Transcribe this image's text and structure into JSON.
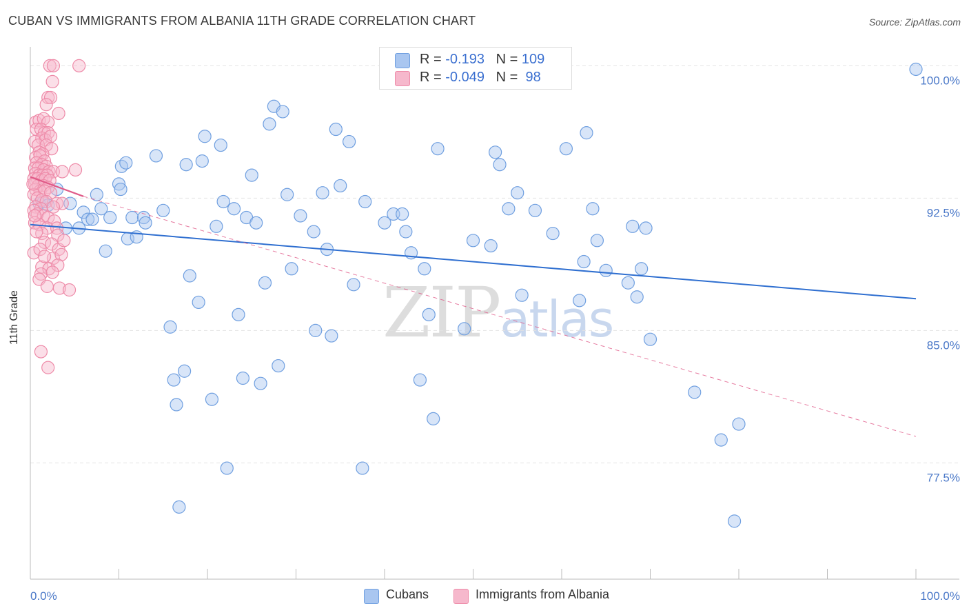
{
  "header": {
    "title": "CUBAN VS IMMIGRANTS FROM ALBANIA 11TH GRADE CORRELATION CHART",
    "source": "Source: ZipAtlas.com"
  },
  "watermark": {
    "zip": "ZIP",
    "atlas": "atlas"
  },
  "legend": {
    "rows": [
      {
        "r_label": "R = ",
        "r_value": "-0.193",
        "n_label": "N = ",
        "n_value": "109",
        "color": "#a9c6f0"
      },
      {
        "r_label": "R = ",
        "r_value": "-0.049",
        "n_label": "N = ",
        "n_value": " 98",
        "color": "#f6b8cc"
      }
    ]
  },
  "bottom_legend": [
    {
      "label": "Cubans",
      "color": "#a9c6f0"
    },
    {
      "label": "Immigrants from Albania",
      "color": "#f6b8cc"
    }
  ],
  "colors": {
    "cubans_fill": "#a9c6f0",
    "cubans_stroke": "#6f9fe0",
    "cubans_line": "#2f6fd0",
    "albania_fill": "#f6b8cc",
    "albania_stroke": "#ee8aa8",
    "albania_line": "#e05a88",
    "axis_text": "#4a78c8",
    "grid": "#e2e2e2"
  },
  "chart_data": {
    "type": "scatter",
    "title": "CUBAN VS IMMIGRANTS FROM ALBANIA 11TH GRADE CORRELATION CHART",
    "xlabel": "",
    "ylabel": "11th Grade",
    "xlim": [
      0,
      100
    ],
    "ylim": [
      71.5,
      100.6
    ],
    "x_tick_labels": [
      "0.0%",
      "100.0%"
    ],
    "y_ticks": [
      77.5,
      85.0,
      92.5,
      100.0
    ],
    "y_tick_labels": [
      "77.5%",
      "85.0%",
      "92.5%",
      "100.0%"
    ],
    "grid": true,
    "legend_position": "top-center",
    "series": [
      {
        "name": "Cubans",
        "R": -0.193,
        "N": 109,
        "trend": {
          "x": [
            0,
            100
          ],
          "y": [
            91.0,
            86.8
          ]
        },
        "points": [
          [
            1,
            92.2
          ],
          [
            1.5,
            92.3
          ],
          [
            2,
            92.1
          ],
          [
            3,
            93.0
          ],
          [
            4,
            90.8
          ],
          [
            4.5,
            92.2
          ],
          [
            5.5,
            90.8
          ],
          [
            6,
            91.7
          ],
          [
            6.5,
            91.3
          ],
          [
            7,
            91.3
          ],
          [
            7.5,
            92.7
          ],
          [
            8,
            91.9
          ],
          [
            8.5,
            89.5
          ],
          [
            9,
            91.4
          ],
          [
            10,
            93.3
          ],
          [
            10.2,
            93.0
          ],
          [
            10.3,
            94.3
          ],
          [
            10.8,
            94.5
          ],
          [
            11,
            90.2
          ],
          [
            11.5,
            91.4
          ],
          [
            12,
            90.3
          ],
          [
            12.8,
            91.4
          ],
          [
            13,
            91.1
          ],
          [
            14.2,
            94.9
          ],
          [
            15,
            91.8
          ],
          [
            15.8,
            85.2
          ],
          [
            16.2,
            82.2
          ],
          [
            16.5,
            80.8
          ],
          [
            16.8,
            75.0
          ],
          [
            17.4,
            82.7
          ],
          [
            17.6,
            94.4
          ],
          [
            18,
            88.1
          ],
          [
            19,
            86.6
          ],
          [
            19.4,
            94.6
          ],
          [
            19.7,
            96.0
          ],
          [
            20.5,
            81.1
          ],
          [
            21,
            90.9
          ],
          [
            21.5,
            95.5
          ],
          [
            21.8,
            92.3
          ],
          [
            22.2,
            77.2
          ],
          [
            23,
            91.9
          ],
          [
            23.5,
            85.9
          ],
          [
            24,
            82.3
          ],
          [
            24.4,
            91.4
          ],
          [
            25,
            93.8
          ],
          [
            25.5,
            91.1
          ],
          [
            26,
            82.0
          ],
          [
            26.5,
            87.7
          ],
          [
            27,
            96.7
          ],
          [
            27.5,
            97.7
          ],
          [
            28,
            83.0
          ],
          [
            28.5,
            97.4
          ],
          [
            29,
            92.7
          ],
          [
            29.5,
            88.5
          ],
          [
            30.5,
            91.5
          ],
          [
            32,
            90.6
          ],
          [
            32.2,
            85.0
          ],
          [
            33,
            92.8
          ],
          [
            33.5,
            89.6
          ],
          [
            34,
            84.7
          ],
          [
            34.5,
            96.4
          ],
          [
            35,
            93.2
          ],
          [
            36,
            95.7
          ],
          [
            36.5,
            87.6
          ],
          [
            37.5,
            77.2
          ],
          [
            37.8,
            92.3
          ],
          [
            40,
            91.1
          ],
          [
            41,
            91.6
          ],
          [
            42,
            91.6
          ],
          [
            42.4,
            90.6
          ],
          [
            43,
            89.4
          ],
          [
            44,
            82.2
          ],
          [
            44.5,
            88.5
          ],
          [
            45,
            85.9
          ],
          [
            45.5,
            80.0
          ],
          [
            46,
            95.3
          ],
          [
            49,
            85.1
          ],
          [
            50,
            90.1
          ],
          [
            52,
            89.8
          ],
          [
            52.5,
            95.1
          ],
          [
            53,
            94.4
          ],
          [
            54,
            91.9
          ],
          [
            55,
            92.8
          ],
          [
            55.5,
            87.0
          ],
          [
            57,
            91.8
          ],
          [
            59,
            90.5
          ],
          [
            60.5,
            95.3
          ],
          [
            62,
            86.7
          ],
          [
            62.5,
            88.9
          ],
          [
            62.8,
            96.2
          ],
          [
            63.5,
            91.9
          ],
          [
            64,
            90.1
          ],
          [
            65,
            88.4
          ],
          [
            67.5,
            87.7
          ],
          [
            68,
            90.9
          ],
          [
            68.5,
            86.9
          ],
          [
            69,
            88.5
          ],
          [
            69.5,
            90.8
          ],
          [
            70,
            84.5
          ],
          [
            75,
            81.5
          ],
          [
            78,
            78.8
          ],
          [
            79.5,
            74.2
          ],
          [
            80,
            79.7
          ],
          [
            100,
            99.8
          ]
        ]
      },
      {
        "name": "Immigrants from Albania",
        "R": -0.049,
        "N": 98,
        "trend": {
          "x": [
            0,
            6
          ],
          "y": [
            93.7,
            92.6
          ]
        },
        "trend_extended": {
          "x": [
            6,
            100
          ],
          "y": [
            92.6,
            79.0
          ]
        },
        "points": [
          [
            2.2,
            100.0
          ],
          [
            2.6,
            100.0
          ],
          [
            5.5,
            100.0
          ],
          [
            2.5,
            99.1
          ],
          [
            2.0,
            98.2
          ],
          [
            2.3,
            98.2
          ],
          [
            1.8,
            97.8
          ],
          [
            3.2,
            97.3
          ],
          [
            0.6,
            96.8
          ],
          [
            1.0,
            96.9
          ],
          [
            1.5,
            97.0
          ],
          [
            2.0,
            96.8
          ],
          [
            0.7,
            96.4
          ],
          [
            1.2,
            96.4
          ],
          [
            1.6,
            96.2
          ],
          [
            2.0,
            96.2
          ],
          [
            1.3,
            95.9
          ],
          [
            1.7,
            95.8
          ],
          [
            2.3,
            96.0
          ],
          [
            0.5,
            95.7
          ],
          [
            0.9,
            95.5
          ],
          [
            1.8,
            95.5
          ],
          [
            2.4,
            95.3
          ],
          [
            1.0,
            95.1
          ],
          [
            1.4,
            95.0
          ],
          [
            0.6,
            94.8
          ],
          [
            1.1,
            94.9
          ],
          [
            1.6,
            94.6
          ],
          [
            0.7,
            94.5
          ],
          [
            1.3,
            94.4
          ],
          [
            1.8,
            94.3
          ],
          [
            0.5,
            94.2
          ],
          [
            0.9,
            94.2
          ],
          [
            1.5,
            94.1
          ],
          [
            2.1,
            94.0
          ],
          [
            2.6,
            94.0
          ],
          [
            3.6,
            94.0
          ],
          [
            5.1,
            94.1
          ],
          [
            0.6,
            93.9
          ],
          [
            1.0,
            93.8
          ],
          [
            1.4,
            93.8
          ],
          [
            1.9,
            93.8
          ],
          [
            0.4,
            93.6
          ],
          [
            0.8,
            93.6
          ],
          [
            1.3,
            93.5
          ],
          [
            1.7,
            93.6
          ],
          [
            2.2,
            93.5
          ],
          [
            0.5,
            93.3
          ],
          [
            0.9,
            93.2
          ],
          [
            1.5,
            93.2
          ],
          [
            2.0,
            93.1
          ],
          [
            0.6,
            93.0
          ],
          [
            1.1,
            92.9
          ],
          [
            1.6,
            92.9
          ],
          [
            2.3,
            92.8
          ],
          [
            0.4,
            92.7
          ],
          [
            0.8,
            92.5
          ],
          [
            1.3,
            92.4
          ],
          [
            1.8,
            92.3
          ],
          [
            3.0,
            92.2
          ],
          [
            3.6,
            92.2
          ],
          [
            0.6,
            92.0
          ],
          [
            1.2,
            91.9
          ],
          [
            0.4,
            91.8
          ],
          [
            0.8,
            91.6
          ],
          [
            1.5,
            91.5
          ],
          [
            2.0,
            91.4
          ],
          [
            2.7,
            91.2
          ],
          [
            0.5,
            91.1
          ],
          [
            1.0,
            91.0
          ],
          [
            1.9,
            90.8
          ],
          [
            3.0,
            90.8
          ],
          [
            1.3,
            90.5
          ],
          [
            3.1,
            90.4
          ],
          [
            1.6,
            90.0
          ],
          [
            2.4,
            89.9
          ],
          [
            0.4,
            89.4
          ],
          [
            1.1,
            89.6
          ],
          [
            3.2,
            89.6
          ],
          [
            2.6,
            89.1
          ],
          [
            3.5,
            89.3
          ],
          [
            1.3,
            88.6
          ],
          [
            2.1,
            88.5
          ],
          [
            3.1,
            88.7
          ],
          [
            1.2,
            88.2
          ],
          [
            2.5,
            88.3
          ],
          [
            1.0,
            87.9
          ],
          [
            1.9,
            87.5
          ],
          [
            3.3,
            87.4
          ],
          [
            4.4,
            87.3
          ],
          [
            1.2,
            83.8
          ],
          [
            2.0,
            82.9
          ],
          [
            0.3,
            93.3
          ],
          [
            0.5,
            91.5
          ],
          [
            1.6,
            89.2
          ],
          [
            2.6,
            92.0
          ],
          [
            3.8,
            90.1
          ],
          [
            0.7,
            90.6
          ]
        ]
      }
    ]
  }
}
